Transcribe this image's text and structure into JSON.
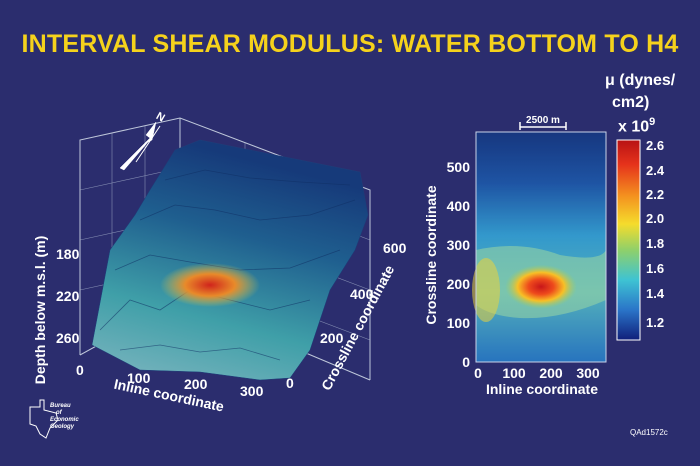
{
  "title": "INTERVAL SHEAR MODULUS: WATER BOTTOM TO H4",
  "legend": {
    "line1": "μ (dynes/",
    "line2": "cm2)",
    "line3": "x 10",
    "line3_exp": "9",
    "ticks": [
      "2.6",
      "2.4",
      "2.2",
      "2.0",
      "1.8",
      "1.6",
      "1.4",
      "1.2"
    ],
    "colors": [
      "#c21416",
      "#e9321b",
      "#f48c1e",
      "#f5d52a",
      "#8fd06a",
      "#3ec3d3",
      "#2f7fd0",
      "#13348c"
    ]
  },
  "logo": {
    "lines": [
      "Bureau",
      "of",
      "Economic",
      "Geology"
    ]
  },
  "code": "QAd1572c",
  "north_label": "N",
  "chart_data": [
    {
      "type": "surface3d",
      "zlabel": "Depth below m.s.l. (m)",
      "xlabel": "Inline coordinate",
      "ylabel": "Crossline coordinate",
      "z_ticks": [
        "180",
        "220",
        "260"
      ],
      "x_ticks": [
        "0",
        "100",
        "200",
        "300"
      ],
      "y_ticks": [
        "0",
        "200",
        "400",
        "600"
      ]
    },
    {
      "type": "heatmap",
      "xlabel": "Inline coordinate",
      "ylabel": "Crossline coordinate",
      "x_ticks": [
        "0",
        "100",
        "200",
        "300"
      ],
      "y_ticks": [
        "0",
        "100",
        "200",
        "300",
        "400",
        "500"
      ],
      "xlim": [
        0,
        340
      ],
      "ylim": [
        0,
        580
      ],
      "scale_bar": "2500 m",
      "hotspot": {
        "x": 170,
        "y": 190,
        "value": 2.6
      }
    }
  ]
}
